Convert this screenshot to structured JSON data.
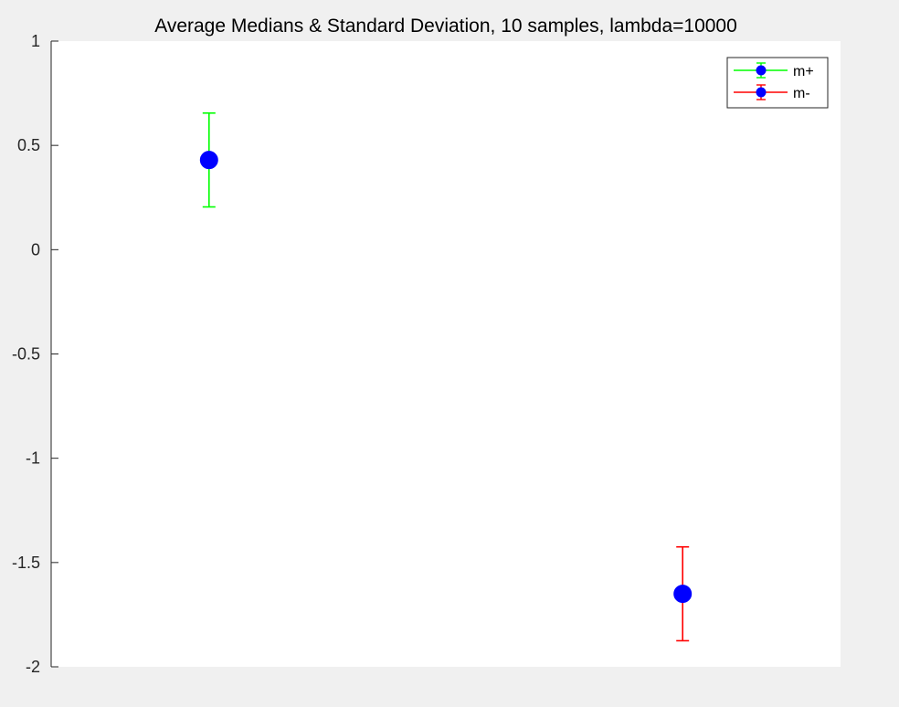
{
  "colors": {
    "figure_background": "#f0f0f0",
    "axes_background": "#ffffff",
    "axis_line": "#262626",
    "marker": "#0000ff"
  },
  "chart_data": {
    "type": "scatter",
    "title": "Average Medians & Standard Deviation, 10 samples, lambda=10000",
    "xlabel": "",
    "ylabel": "",
    "xlim": [
      0,
      5
    ],
    "ylim": [
      -2,
      1
    ],
    "grid": false,
    "legend_position": "top-right",
    "yticks": [
      1,
      0.5,
      0,
      -0.5,
      -1,
      -1.5,
      -2
    ],
    "ytick_labels": [
      "1",
      "0.5",
      "0",
      "-0.5",
      "-1",
      "-1.5",
      "-2"
    ],
    "series": [
      {
        "name": "m+",
        "error_color": "#00ff00",
        "marker_color": "#0000ff",
        "points": [
          {
            "x": 1,
            "y": 0.43,
            "err": 0.225
          }
        ]
      },
      {
        "name": "m-",
        "error_color": "#ff0000",
        "marker_color": "#0000ff",
        "points": [
          {
            "x": 4,
            "y": -1.65,
            "err": 0.225
          }
        ]
      }
    ]
  }
}
